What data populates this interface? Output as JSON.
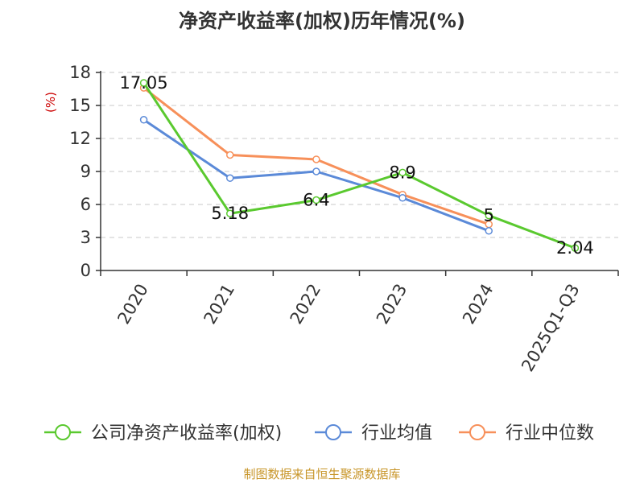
{
  "chart_data": {
    "type": "line",
    "title": "净资产收益率(加权)历年情况(%)",
    "ylabel": "(%)",
    "ylim": [
      0,
      18
    ],
    "yticks": [
      0,
      3,
      6,
      9,
      12,
      15,
      18
    ],
    "grid": true,
    "legend_position": "bottom",
    "categories": [
      "2020",
      "2021",
      "2022",
      "2023",
      "2024",
      "2025Q1-Q3"
    ],
    "series": [
      {
        "name": "公司净资产收益率(加权)",
        "color": "#5ac92f",
        "values": [
          17.05,
          5.18,
          6.4,
          8.9,
          5,
          2.04
        ],
        "labels": [
          "17.05",
          "5.18",
          "6.4",
          "8.9",
          "5",
          "2.04"
        ]
      },
      {
        "name": "行业均值",
        "color": "#5b8ad8",
        "values": [
          13.7,
          8.4,
          9.0,
          6.6,
          3.6,
          null
        ]
      },
      {
        "name": "行业中位数",
        "color": "#f7905a",
        "values": [
          16.6,
          10.5,
          10.1,
          6.9,
          4.2,
          null
        ]
      }
    ]
  },
  "source": "制图数据来自恒生聚源数据库"
}
